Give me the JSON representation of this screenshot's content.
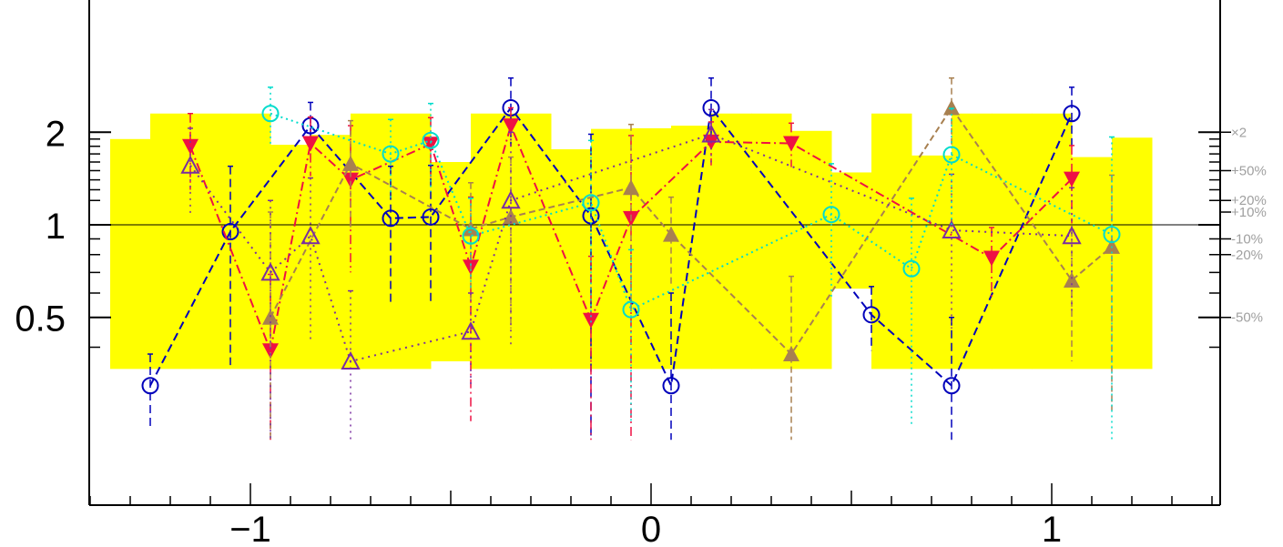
{
  "chart_data": {
    "type": "line",
    "title": "",
    "xlabel": "",
    "ylabel": "",
    "xlim": [
      -1.45,
      1.45
    ],
    "ylim": [
      0.34,
      2.15
    ],
    "y_scale": "log",
    "reference_line": 1.0,
    "grid": false,
    "x_ticks": [
      {
        "value": -1,
        "label": "−1"
      },
      {
        "value": 0,
        "label": "0"
      },
      {
        "value": 1,
        "label": "1"
      }
    ],
    "y_ticks": [
      {
        "value": 0.5,
        "label": "0.5"
      },
      {
        "value": 1,
        "label": "1"
      },
      {
        "value": 2,
        "label": "2"
      }
    ],
    "right_axis_labels": [
      {
        "value": 2.0,
        "label": "×2"
      },
      {
        "value": 1.5,
        "label": "+50%"
      },
      {
        "value": 1.2,
        "label": "+20%"
      },
      {
        "value": 1.1,
        "label": "+10%"
      },
      {
        "value": 0.9,
        "label": "-10%"
      },
      {
        "value": 0.8,
        "label": "-20%"
      },
      {
        "value": 0.5,
        "label": "-50%"
      }
    ],
    "band": {
      "color": "#ffff00",
      "bins": [
        {
          "x0": -1.35,
          "x1": -1.25,
          "lo": 0.34,
          "hi": 1.9
        },
        {
          "x0": -1.25,
          "x1": -1.15,
          "lo": 0.34,
          "hi": 2.3
        },
        {
          "x0": -1.15,
          "x1": -1.05,
          "lo": 0.34,
          "hi": 2.3
        },
        {
          "x0": -1.05,
          "x1": -0.95,
          "lo": 0.34,
          "hi": 2.3
        },
        {
          "x0": -0.95,
          "x1": -0.85,
          "lo": 0.34,
          "hi": 1.82
        },
        {
          "x0": -0.85,
          "x1": -0.75,
          "lo": 0.34,
          "hi": 1.96
        },
        {
          "x0": -0.75,
          "x1": -0.65,
          "lo": 0.34,
          "hi": 2.3
        },
        {
          "x0": -0.65,
          "x1": -0.55,
          "lo": 0.34,
          "hi": 2.3
        },
        {
          "x0": -0.55,
          "x1": -0.45,
          "lo": 0.36,
          "hi": 1.6
        },
        {
          "x0": -0.45,
          "x1": -0.35,
          "lo": 0.34,
          "hi": 2.3
        },
        {
          "x0": -0.35,
          "x1": -0.25,
          "lo": 0.34,
          "hi": 2.3
        },
        {
          "x0": -0.25,
          "x1": -0.15,
          "lo": 0.34,
          "hi": 1.76
        },
        {
          "x0": -0.15,
          "x1": -0.05,
          "lo": 0.34,
          "hi": 2.05
        },
        {
          "x0": -0.05,
          "x1": 0.05,
          "lo": 0.34,
          "hi": 2.06
        },
        {
          "x0": 0.05,
          "x1": 0.15,
          "lo": 0.34,
          "hi": 2.1
        },
        {
          "x0": 0.15,
          "x1": 0.25,
          "lo": 0.34,
          "hi": 2.3
        },
        {
          "x0": 0.25,
          "x1": 0.35,
          "lo": 0.34,
          "hi": 2.3
        },
        {
          "x0": 0.35,
          "x1": 0.45,
          "lo": 0.34,
          "hi": 2.02
        },
        {
          "x0": 0.45,
          "x1": 0.55,
          "lo": 0.62,
          "hi": 1.48
        },
        {
          "x0": 0.55,
          "x1": 0.65,
          "lo": 0.34,
          "hi": 2.3
        },
        {
          "x0": 0.65,
          "x1": 0.75,
          "lo": 0.34,
          "hi": 1.68
        },
        {
          "x0": 0.75,
          "x1": 0.85,
          "lo": 0.34,
          "hi": 2.3
        },
        {
          "x0": 0.85,
          "x1": 0.95,
          "lo": 0.34,
          "hi": 2.3
        },
        {
          "x0": 0.95,
          "x1": 1.05,
          "lo": 0.34,
          "hi": 2.3
        },
        {
          "x0": 1.05,
          "x1": 1.15,
          "lo": 0.34,
          "hi": 1.66
        },
        {
          "x0": 1.15,
          "x1": 1.25,
          "lo": 0.34,
          "hi": 1.92
        }
      ]
    },
    "series": [
      {
        "color": "#0000bb",
        "dash": "9,5",
        "marker": "circle-open",
        "x": [
          -1.25,
          -1.05,
          -0.85,
          -0.65,
          -0.55,
          -0.35,
          -0.15,
          0.05,
          0.15,
          0.55,
          0.75,
          1.05
        ],
        "y": [
          0.3,
          0.95,
          2.1,
          1.05,
          1.06,
          2.4,
          1.07,
          0.3,
          2.4,
          0.51,
          0.3,
          2.3
        ],
        "err": [
          0.08,
          0.6,
          0.4,
          0.5,
          0.5,
          0.6,
          0.9,
          0.3,
          0.6,
          0.12,
          0.2,
          0.5
        ]
      },
      {
        "color": "#ee1144",
        "dash": "10,4,2,4",
        "marker": "triangle-down",
        "x": [
          -1.15,
          -0.95,
          -0.85,
          -0.75,
          -0.55,
          -0.45,
          -0.35,
          -0.15,
          -0.05,
          0.15,
          0.35,
          0.85,
          1.05
        ],
        "y": [
          1.8,
          0.39,
          1.84,
          1.4,
          1.83,
          0.73,
          2.1,
          0.49,
          1.05,
          1.86,
          1.84,
          0.78,
          1.41
        ],
        "err": [
          0.5,
          0.3,
          0.4,
          0.7,
          0.4,
          0.5,
          0.3,
          0.3,
          0.9,
          0.3,
          0.3,
          0.2,
          0.4
        ]
      },
      {
        "color": "#a88050",
        "dash": "7,4",
        "marker": "triangle-up",
        "x": [
          -0.95,
          -0.75,
          -0.45,
          -0.35,
          -0.05,
          0.05,
          0.35,
          0.75,
          1.05,
          1.15
        ],
        "y": [
          0.5,
          1.58,
          0.97,
          1.06,
          1.32,
          0.93,
          0.38,
          2.4,
          0.66,
          0.85
        ],
        "err": [
          0.6,
          0.6,
          0.4,
          0.6,
          0.8,
          0.3,
          0.3,
          0.6,
          0.3,
          0.6
        ]
      },
      {
        "color": "#7a2ea0",
        "dash": "2,5",
        "marker": "triangle-open",
        "x": [
          -1.15,
          -0.95,
          -0.85,
          -0.75,
          -0.45,
          -0.35,
          0.15,
          0.75,
          1.05
        ],
        "y": [
          1.56,
          0.7,
          0.92,
          0.36,
          0.45,
          1.2,
          1.97,
          0.96,
          0.92
        ],
        "err": [
          0.5,
          0.5,
          0.5,
          0.25,
          0.15,
          0.8,
          0.4,
          0.5,
          0.4
        ]
      },
      {
        "color": "#00dccc",
        "dash": "2,4",
        "marker": "circle-open",
        "x": [
          -0.95,
          -0.65,
          -0.55,
          -0.45,
          -0.15,
          -0.05,
          0.45,
          0.65,
          0.75,
          1.15
        ],
        "y": [
          2.3,
          1.7,
          1.88,
          0.92,
          1.18,
          0.53,
          1.08,
          0.72,
          1.69,
          0.93
        ],
        "err": [
          0.5,
          0.5,
          0.6,
          0.3,
          0.7,
          0.3,
          0.5,
          0.5,
          0.7,
          1.0
        ]
      }
    ]
  }
}
